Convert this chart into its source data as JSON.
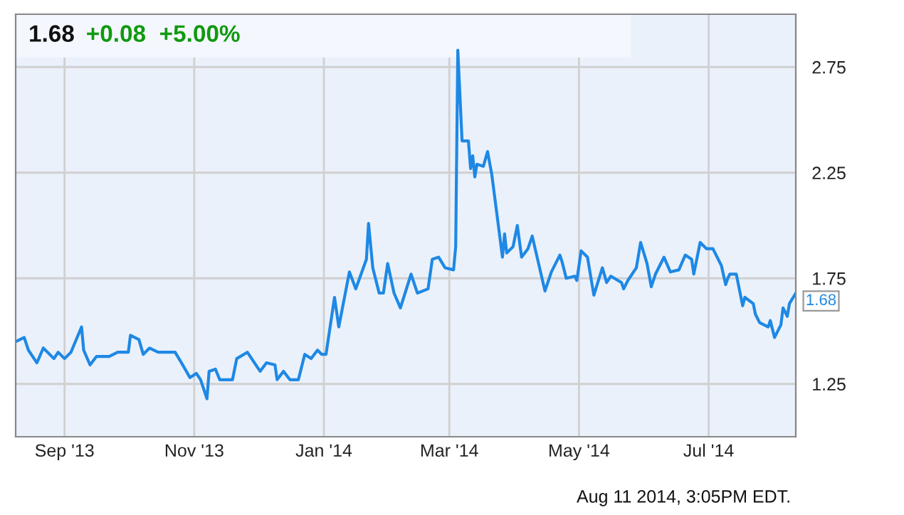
{
  "chart_data": {
    "type": "line",
    "title": "1.68",
    "subtitle": "+0.08  +5.00%",
    "annotations": [
      {
        "text": "1.68",
        "x": "2014-08-11",
        "y": 1.68
      },
      "Aug 11 2014, 3:05PM EDT."
    ],
    "series": [
      {
        "color": "#1e88e5",
        "x": [
          "2013-08-09",
          "2013-08-13",
          "2013-08-15",
          "2013-08-19",
          "2013-08-22",
          "2013-08-27",
          "2013-08-29",
          "2013-09-01",
          "2013-09-04",
          "2013-09-09",
          "2013-09-10",
          "2013-09-13",
          "2013-09-16",
          "2013-09-22",
          "2013-09-26",
          "2013-10-01",
          "2013-10-02",
          "2013-10-06",
          "2013-10-08",
          "2013-10-11",
          "2013-10-15",
          "2013-10-23",
          "2013-10-26",
          "2013-10-30",
          "2013-11-02",
          "2013-11-04",
          "2013-11-07",
          "2013-11-08",
          "2013-11-11",
          "2013-11-13",
          "2013-11-17",
          "2013-11-19",
          "2013-11-21",
          "2013-11-26",
          "2013-12-02",
          "2013-12-05",
          "2013-12-09",
          "2013-12-10",
          "2013-12-13",
          "2013-12-16",
          "2013-12-20",
          "2013-12-23",
          "2013-12-26",
          "2013-12-29",
          "2013-12-31",
          "2014-01-02",
          "2014-01-06",
          "2014-01-08",
          "2014-01-13",
          "2014-01-16",
          "2014-01-21",
          "2014-01-22",
          "2014-01-24",
          "2014-01-27",
          "2014-01-29",
          "2014-01-31",
          "2014-02-03",
          "2014-02-06",
          "2014-02-11",
          "2014-02-14",
          "2014-02-19",
          "2014-02-21",
          "2014-02-24",
          "2014-02-27",
          "2014-03-03",
          "2014-03-04",
          "2014-03-05",
          "2014-03-07",
          "2014-03-10",
          "2014-03-11",
          "2014-03-12",
          "2014-03-13",
          "2014-03-14",
          "2014-03-17",
          "2014-03-19",
          "2014-03-21",
          "2014-03-26",
          "2014-03-27",
          "2014-03-28",
          "2014-03-31",
          "2014-04-02",
          "2014-04-04",
          "2014-04-07",
          "2014-04-09",
          "2014-04-15",
          "2014-04-18",
          "2014-04-22",
          "2014-04-23",
          "2014-04-25",
          "2014-04-29",
          "2014-04-30",
          "2014-05-02",
          "2014-05-05",
          "2014-05-08",
          "2014-05-12",
          "2014-05-14",
          "2014-05-16",
          "2014-05-21",
          "2014-05-22",
          "2014-05-24",
          "2014-05-28",
          "2014-05-30",
          "2014-06-02",
          "2014-06-04",
          "2014-06-06",
          "2014-06-10",
          "2014-06-13",
          "2014-06-17",
          "2014-06-20",
          "2014-06-23",
          "2014-06-24",
          "2014-06-27",
          "2014-06-30",
          "2014-07-03",
          "2014-07-07",
          "2014-07-09",
          "2014-07-10",
          "2014-07-11",
          "2014-07-14",
          "2014-07-17",
          "2014-07-18",
          "2014-07-22",
          "2014-07-23",
          "2014-07-25",
          "2014-07-29",
          "2014-07-30",
          "2014-08-01",
          "2014-08-04",
          "2014-08-05",
          "2014-08-07",
          "2014-08-08",
          "2014-08-11"
        ],
        "values": [
          1.45,
          1.47,
          1.41,
          1.35,
          1.42,
          1.37,
          1.4,
          1.37,
          1.4,
          1.52,
          1.41,
          1.34,
          1.38,
          1.38,
          1.4,
          1.4,
          1.48,
          1.46,
          1.39,
          1.42,
          1.4,
          1.4,
          1.35,
          1.28,
          1.3,
          1.27,
          1.18,
          1.31,
          1.32,
          1.27,
          1.27,
          1.27,
          1.37,
          1.4,
          1.31,
          1.35,
          1.34,
          1.27,
          1.31,
          1.27,
          1.27,
          1.39,
          1.37,
          1.41,
          1.39,
          1.39,
          1.66,
          1.52,
          1.78,
          1.7,
          1.84,
          2.01,
          1.8,
          1.68,
          1.68,
          1.82,
          1.68,
          1.61,
          1.77,
          1.68,
          1.7,
          1.84,
          1.85,
          1.8,
          1.79,
          1.9,
          2.83,
          2.4,
          2.4,
          2.27,
          2.33,
          2.23,
          2.29,
          2.28,
          2.35,
          2.24,
          1.85,
          1.96,
          1.87,
          1.9,
          2.0,
          1.85,
          1.89,
          1.95,
          1.69,
          1.78,
          1.86,
          1.83,
          1.75,
          1.76,
          1.74,
          1.88,
          1.85,
          1.67,
          1.8,
          1.73,
          1.76,
          1.73,
          1.7,
          1.74,
          1.8,
          1.92,
          1.82,
          1.71,
          1.77,
          1.85,
          1.78,
          1.79,
          1.86,
          1.84,
          1.77,
          1.92,
          1.89,
          1.89,
          1.81,
          1.72,
          1.75,
          1.77,
          1.77,
          1.62,
          1.66,
          1.63,
          1.58,
          1.54,
          1.52,
          1.55,
          1.47,
          1.53,
          1.61,
          1.57,
          1.63,
          1.68
        ]
      }
    ],
    "xlim": [
      "2013-08-09",
      "2014-08-11"
    ],
    "xticks": [
      {
        "value": "2013-09-01",
        "label": "Sep '13"
      },
      {
        "value": "2013-11-01",
        "label": "Nov '13"
      },
      {
        "value": "2014-01-01",
        "label": "Jan '14"
      },
      {
        "value": "2014-03-01",
        "label": "Mar '14"
      },
      {
        "value": "2014-05-01",
        "label": "May '14"
      },
      {
        "value": "2014-07-01",
        "label": "Jul '14"
      }
    ],
    "ylim": [
      1.0,
      3.0
    ],
    "yticks": [
      1.25,
      1.75,
      2.25,
      2.75
    ],
    "grid": true,
    "line_style": "solid",
    "marker": "none"
  }
}
